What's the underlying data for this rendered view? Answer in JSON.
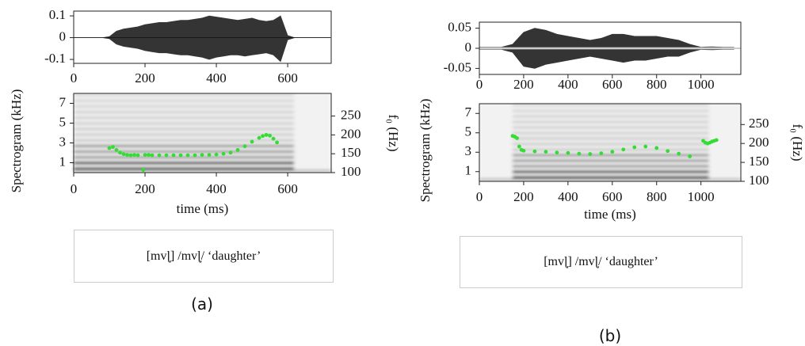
{
  "chart_data": [
    {
      "type": "line",
      "xlim": [
        0,
        722
      ],
      "ylim": [
        -0.118,
        0.122
      ],
      "xticks": [
        0,
        200,
        400,
        600
      ],
      "yticks": [
        0.1,
        0,
        -0.1
      ],
      "x": [
        0,
        20,
        40,
        60,
        80,
        100,
        120,
        140,
        160,
        180,
        200,
        220,
        240,
        260,
        280,
        300,
        320,
        340,
        360,
        380,
        400,
        420,
        440,
        460,
        480,
        500,
        520,
        540,
        560,
        580,
        600,
        620,
        640,
        660,
        680,
        700,
        720
      ],
      "series": [
        {
          "color": "#111111",
          "values": [
            0,
            0,
            0,
            0,
            0,
            0.005,
            0.03,
            0.04,
            0.045,
            0.05,
            0.06,
            0.065,
            0.07,
            0.07,
            0.075,
            0.08,
            0.08,
            0.085,
            0.09,
            0.1,
            0.095,
            0.09,
            0.085,
            0.08,
            0.085,
            0.09,
            0.08,
            0.075,
            0.08,
            0.1,
            0.01,
            0,
            0,
            0,
            0,
            0,
            0
          ]
        },
        {
          "color": "#111111",
          "values": [
            0,
            0,
            0,
            0,
            0,
            -0.005,
            -0.03,
            -0.04,
            -0.045,
            -0.05,
            -0.06,
            -0.065,
            -0.07,
            -0.07,
            -0.075,
            -0.08,
            -0.08,
            -0.085,
            -0.09,
            -0.1,
            -0.09,
            -0.085,
            -0.08,
            -0.08,
            -0.085,
            -0.08,
            -0.075,
            -0.07,
            -0.08,
            -0.11,
            -0.01,
            0,
            0,
            0,
            0,
            0,
            0
          ]
        }
      ]
    },
    {
      "type": "scatter",
      "x_label": "time (ms)",
      "y_label": "Spectrogram (kHz)",
      "y2_label": "f₀ (Hz)",
      "xlim": [
        0,
        722
      ],
      "ylim": [
        0,
        8
      ],
      "y2lim": [
        100,
        310
      ],
      "xticks": [
        0,
        200,
        400,
        600
      ],
      "yticks": [
        1,
        3,
        5,
        7
      ],
      "y2ticks": [
        100,
        150,
        200,
        250
      ],
      "x": [
        100,
        110,
        120,
        130,
        140,
        150,
        160,
        170,
        180,
        195,
        200,
        210,
        220,
        240,
        260,
        280,
        300,
        320,
        340,
        360,
        380,
        400,
        420,
        440,
        460,
        480,
        500,
        520,
        530,
        540,
        550,
        560,
        570
      ],
      "series": [
        {
          "color": "#33dd33",
          "axis": "y2",
          "values": [
            165,
            168,
            160,
            153,
            149,
            147,
            146,
            147,
            146,
            107,
            147,
            147,
            146,
            146,
            146,
            146,
            146,
            146,
            146,
            147,
            147,
            148,
            150,
            153,
            160,
            170,
            182,
            192,
            197,
            200,
            198,
            190,
            180
          ]
        }
      ]
    },
    {
      "type": "line",
      "xlim": [
        0,
        1180
      ],
      "ylim": [
        -0.065,
        0.065
      ],
      "xticks": [
        0,
        200,
        400,
        600,
        800,
        1000
      ],
      "yticks": [
        0.05,
        0,
        -0.05
      ],
      "x": [
        0,
        50,
        100,
        150,
        200,
        250,
        300,
        350,
        400,
        450,
        500,
        550,
        600,
        650,
        700,
        750,
        800,
        850,
        900,
        950,
        1000,
        1050,
        1100,
        1150
      ],
      "series": [
        {
          "color": "#111111",
          "values": [
            0.003,
            0.003,
            0.003,
            0.01,
            0.04,
            0.05,
            0.045,
            0.035,
            0.03,
            0.025,
            0.02,
            0.025,
            0.035,
            0.035,
            0.03,
            0.03,
            0.03,
            0.025,
            0.02,
            0.01,
            0.003,
            0.004,
            0.003,
            0.003
          ]
        },
        {
          "color": "#111111",
          "values": [
            -0.003,
            -0.003,
            -0.003,
            -0.01,
            -0.045,
            -0.05,
            -0.04,
            -0.035,
            -0.03,
            -0.025,
            -0.02,
            -0.025,
            -0.03,
            -0.035,
            -0.03,
            -0.03,
            -0.025,
            -0.02,
            -0.02,
            -0.01,
            -0.003,
            -0.004,
            -0.003,
            -0.003
          ]
        }
      ]
    },
    {
      "type": "scatter",
      "x_label": "time (ms)",
      "y_label": "Spectrogram (kHz)",
      "y2_label": "f₀ (Hz)",
      "xlim": [
        0,
        1180
      ],
      "ylim": [
        0,
        8
      ],
      "y2lim": [
        100,
        305
      ],
      "xticks": [
        0,
        200,
        400,
        600,
        800,
        1000
      ],
      "yticks": [
        1,
        3,
        5,
        7
      ],
      "y2ticks": [
        100,
        150,
        200,
        250
      ],
      "x": [
        150,
        160,
        170,
        180,
        190,
        200,
        250,
        300,
        350,
        400,
        450,
        500,
        550,
        600,
        650,
        700,
        750,
        800,
        850,
        900,
        950,
        1010,
        1020,
        1030,
        1040,
        1050,
        1060,
        1070
      ],
      "series": [
        {
          "color": "#33dd33",
          "axis": "y2",
          "values": [
            220,
            218,
            214,
            192,
            183,
            181,
            179,
            178,
            176,
            175,
            173,
            172,
            174,
            178,
            184,
            190,
            192,
            188,
            180,
            173,
            166,
            207,
            202,
            200,
            202,
            205,
            207,
            209
          ]
        }
      ]
    }
  ],
  "captions": [
    "[mvɭ̩] /mvɭ̩/ ‘daughter’",
    "[mvɭ̩] /mvɭ̩/ ‘daughter’"
  ],
  "panel_labels": [
    "(a)",
    "(b)"
  ]
}
